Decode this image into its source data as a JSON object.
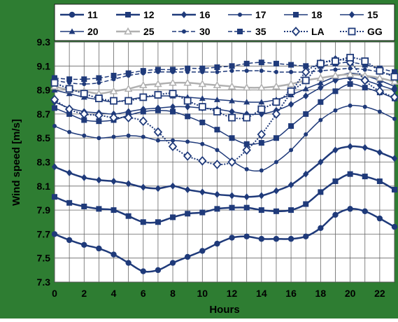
{
  "chart_data": {
    "type": "line",
    "title": "",
    "xlabel": "Hours",
    "ylabel": "Wind speed [m/s]",
    "xlim": [
      0,
      23
    ],
    "ylim": [
      7.3,
      9.3
    ],
    "x_ticks": [
      "0",
      "2",
      "4",
      "6",
      "8",
      "10",
      "12",
      "14",
      "16",
      "18",
      "20",
      "22"
    ],
    "y_ticks": [
      "9.3",
      "9.1",
      "8.9",
      "8.7",
      "8.5",
      "8.3",
      "8.1",
      "7.9",
      "7.7",
      "7.5",
      "7.3"
    ],
    "grid": true,
    "legend_position": "top",
    "background_color": "#2e7d32",
    "plot_background": "#ffffff",
    "x": [
      0,
      1,
      2,
      3,
      4,
      5,
      6,
      7,
      8,
      9,
      10,
      11,
      12,
      13,
      14,
      15,
      16,
      17,
      18,
      19,
      20,
      21,
      22,
      23
    ],
    "series": [
      {
        "name": "11",
        "color": "#1f3a7a",
        "marker": "circle",
        "dash": "solid",
        "width": 2.5,
        "values": [
          7.7,
          7.65,
          7.61,
          7.58,
          7.53,
          7.46,
          7.39,
          7.4,
          7.46,
          7.51,
          7.56,
          7.62,
          7.67,
          7.68,
          7.66,
          7.66,
          7.66,
          7.68,
          7.75,
          7.86,
          7.91,
          7.89,
          7.83,
          7.76
        ]
      },
      {
        "name": "12",
        "color": "#1f3a7a",
        "marker": "square",
        "dash": "solid",
        "width": 2.5,
        "values": [
          8.01,
          7.96,
          7.93,
          7.91,
          7.9,
          7.85,
          7.8,
          7.8,
          7.84,
          7.87,
          7.88,
          7.91,
          7.92,
          7.92,
          7.9,
          7.89,
          7.9,
          7.95,
          8.05,
          8.14,
          8.2,
          8.18,
          8.14,
          8.07
        ]
      },
      {
        "name": "16",
        "color": "#1f3a7a",
        "marker": "diamond",
        "dash": "solid",
        "width": 2.5,
        "values": [
          8.26,
          8.21,
          8.17,
          8.15,
          8.14,
          8.12,
          8.09,
          8.08,
          8.1,
          8.07,
          8.05,
          8.03,
          8.02,
          8.01,
          8.02,
          8.06,
          8.11,
          8.2,
          8.3,
          8.4,
          8.43,
          8.42,
          8.38,
          8.33
        ]
      },
      {
        "name": "17",
        "color": "#1f3a7a",
        "marker": "small-circle",
        "dash": "solid",
        "width": 1.5,
        "values": [
          8.6,
          8.55,
          8.52,
          8.5,
          8.51,
          8.52,
          8.51,
          8.48,
          8.48,
          8.47,
          8.45,
          8.4,
          8.31,
          8.24,
          8.23,
          8.3,
          8.4,
          8.53,
          8.65,
          8.73,
          8.77,
          8.76,
          8.72,
          8.66
        ]
      },
      {
        "name": "18",
        "color": "#1f3a7a",
        "marker": "square",
        "dash": "solid",
        "width": 1.5,
        "values": [
          8.75,
          8.7,
          8.65,
          8.64,
          8.65,
          8.69,
          8.72,
          8.73,
          8.72,
          8.68,
          8.63,
          8.57,
          8.5,
          8.45,
          8.46,
          8.5,
          8.6,
          8.7,
          8.8,
          8.89,
          8.95,
          8.92,
          8.88,
          8.83
        ]
      },
      {
        "name": "15",
        "color": "#1f3a7a",
        "marker": "diamond",
        "dash": "solid",
        "width": 1.5,
        "values": [
          8.8,
          8.75,
          8.72,
          8.71,
          8.7,
          8.72,
          8.74,
          8.75,
          8.76,
          8.76,
          8.75,
          8.74,
          8.72,
          8.7,
          8.7,
          8.73,
          8.78,
          8.85,
          8.92,
          8.98,
          9.0,
          8.98,
          8.94,
          8.9
        ]
      },
      {
        "name": "20",
        "color": "#1f3a7a",
        "marker": "triangle",
        "dash": "solid",
        "width": 1.5,
        "values": [
          8.9,
          8.87,
          8.84,
          8.82,
          8.8,
          8.82,
          8.84,
          8.85,
          8.85,
          8.84,
          8.83,
          8.82,
          8.81,
          8.8,
          8.8,
          8.82,
          8.86,
          8.91,
          8.96,
          9.01,
          9.04,
          9.02,
          8.98,
          8.93
        ]
      },
      {
        "name": "25",
        "color": "#b0b0b0",
        "marker": "triangle-open",
        "dash": "solid",
        "width": 2.5,
        "values": [
          8.93,
          8.9,
          8.89,
          8.87,
          8.89,
          8.91,
          8.94,
          8.95,
          8.96,
          8.96,
          8.95,
          8.94,
          8.93,
          8.92,
          8.92,
          8.93,
          8.95,
          8.98,
          9.0,
          9.02,
          9.03,
          9.02,
          9.0,
          8.97
        ]
      },
      {
        "name": "30",
        "color": "#1f3a7a",
        "marker": "small-circle",
        "dash": "dashed",
        "width": 1.5,
        "values": [
          8.98,
          8.96,
          8.95,
          8.96,
          8.99,
          9.02,
          9.04,
          9.05,
          9.05,
          9.05,
          9.05,
          9.05,
          9.06,
          9.06,
          9.06,
          9.05,
          9.05,
          9.05,
          9.06,
          9.07,
          9.08,
          9.07,
          9.05,
          9.02
        ]
      },
      {
        "name": "35",
        "color": "#1f3a7a",
        "marker": "square",
        "dash": "dashed",
        "width": 1.5,
        "values": [
          9.0,
          8.99,
          8.99,
          9.0,
          9.02,
          9.04,
          9.06,
          9.07,
          9.07,
          9.08,
          9.08,
          9.09,
          9.1,
          9.12,
          9.13,
          9.12,
          9.11,
          9.1,
          9.1,
          9.12,
          9.13,
          9.11,
          9.08,
          9.05
        ]
      },
      {
        "name": "LA",
        "color": "#1f3a7a",
        "marker": "diamond-open",
        "dash": "dotted",
        "width": 2.0,
        "values": [
          8.82,
          8.74,
          8.7,
          8.69,
          8.67,
          8.67,
          8.64,
          8.55,
          8.43,
          8.35,
          8.31,
          8.28,
          8.3,
          8.4,
          8.53,
          8.7,
          8.88,
          9.05,
          9.12,
          9.15,
          9.13,
          8.98,
          8.89,
          8.84
        ]
      },
      {
        "name": "GG",
        "color": "#1f3a7a",
        "marker": "square-open",
        "dash": "dotted",
        "width": 2.0,
        "values": [
          8.96,
          8.91,
          8.87,
          8.83,
          8.81,
          8.81,
          8.84,
          8.86,
          8.87,
          8.81,
          8.76,
          8.72,
          8.67,
          8.67,
          8.74,
          8.8,
          8.89,
          8.98,
          9.12,
          9.14,
          9.17,
          9.14,
          9.06,
          9.01
        ]
      }
    ]
  }
}
